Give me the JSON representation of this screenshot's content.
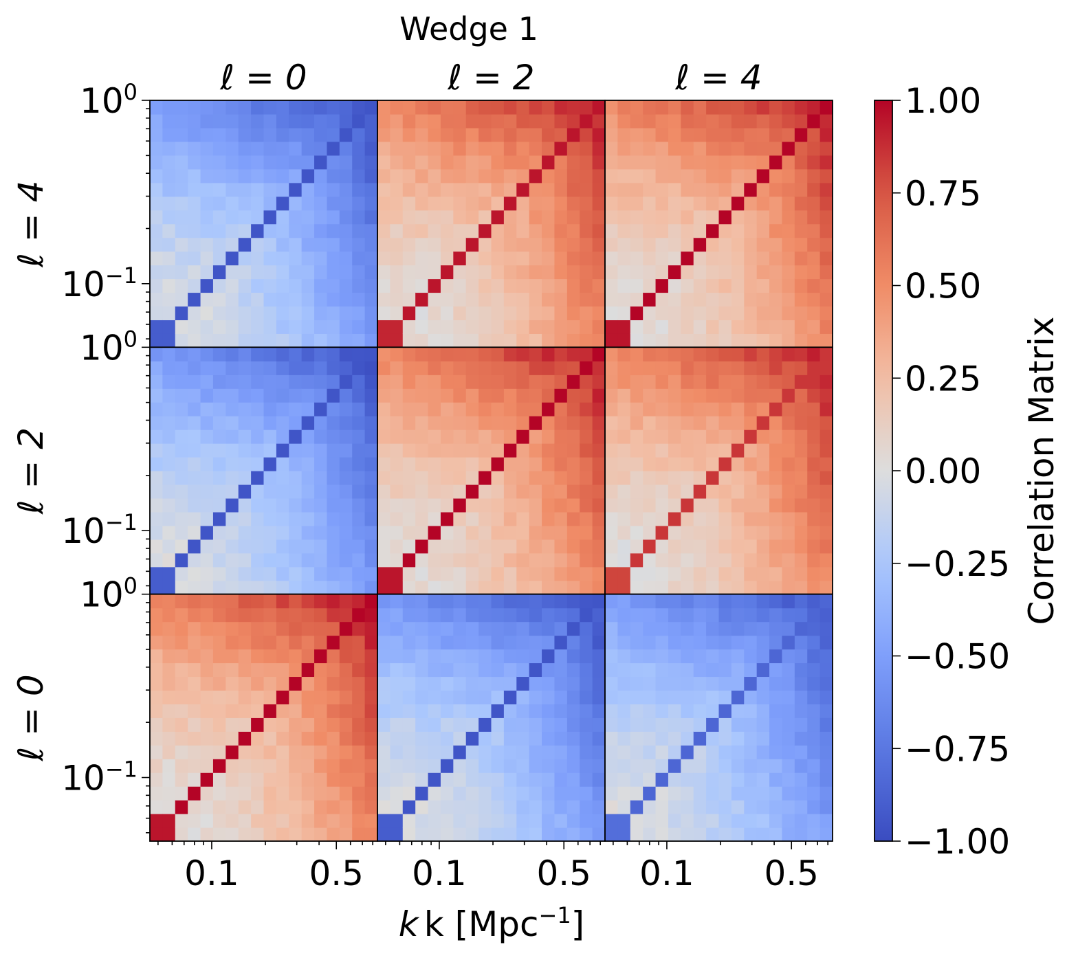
{
  "chart_data": {
    "type": "heatmap",
    "title": "Wedge 1",
    "column_titles": [
      "ℓ = 0",
      "ℓ = 2",
      "ℓ = 4"
    ],
    "row_titles": [
      "ℓ = 4",
      "ℓ = 2",
      "ℓ = 0"
    ],
    "xlabel": "k [Mpc",
    "xlabel_exp": "−1",
    "xlabel_close": "]",
    "x_scale": "log",
    "y_scale": "log",
    "xlim": [
      0.045,
      0.85
    ],
    "ylim": [
      0.045,
      1.0
    ],
    "x_ticks": [
      {
        "value": 0.1,
        "label": "0.1"
      },
      {
        "value": 0.5,
        "label": "0.5"
      }
    ],
    "y_ticks": [
      {
        "value": 0.1,
        "base": "10",
        "exp": "−1"
      },
      {
        "value": 1.0,
        "base": "10",
        "exp": "0"
      }
    ],
    "grid_size": 18,
    "cells": [
      [
        {
          "sign": -1,
          "diag": -0.95,
          "amp": 0.95
        },
        {
          "sign": 1,
          "diag": 0.95,
          "amp": 0.92
        },
        {
          "sign": 1,
          "diag": 1.0,
          "amp": 0.92
        }
      ],
      [
        {
          "sign": -1,
          "diag": -0.95,
          "amp": 0.95
        },
        {
          "sign": 1,
          "diag": 1.0,
          "amp": 0.95
        },
        {
          "sign": 1,
          "diag": 0.85,
          "amp": 0.92
        }
      ],
      [
        {
          "sign": 1,
          "diag": 1.0,
          "amp": 0.95
        },
        {
          "sign": -1,
          "diag": -0.95,
          "amp": 0.95
        },
        {
          "sign": -1,
          "diag": -0.85,
          "amp": 0.92
        }
      ]
    ],
    "colorbar": {
      "label": "Correlation Matrix",
      "range": [
        -1.0,
        1.0
      ],
      "ticks": [
        "1.00",
        "0.75",
        "0.50",
        "0.25",
        "0.00",
        "−0.25",
        "−0.50",
        "−0.75",
        "−1.00"
      ],
      "tick_values": [
        1.0,
        0.75,
        0.5,
        0.25,
        0.0,
        -0.25,
        -0.5,
        -0.75,
        -1.0
      ],
      "colormap": "coolwarm"
    }
  }
}
